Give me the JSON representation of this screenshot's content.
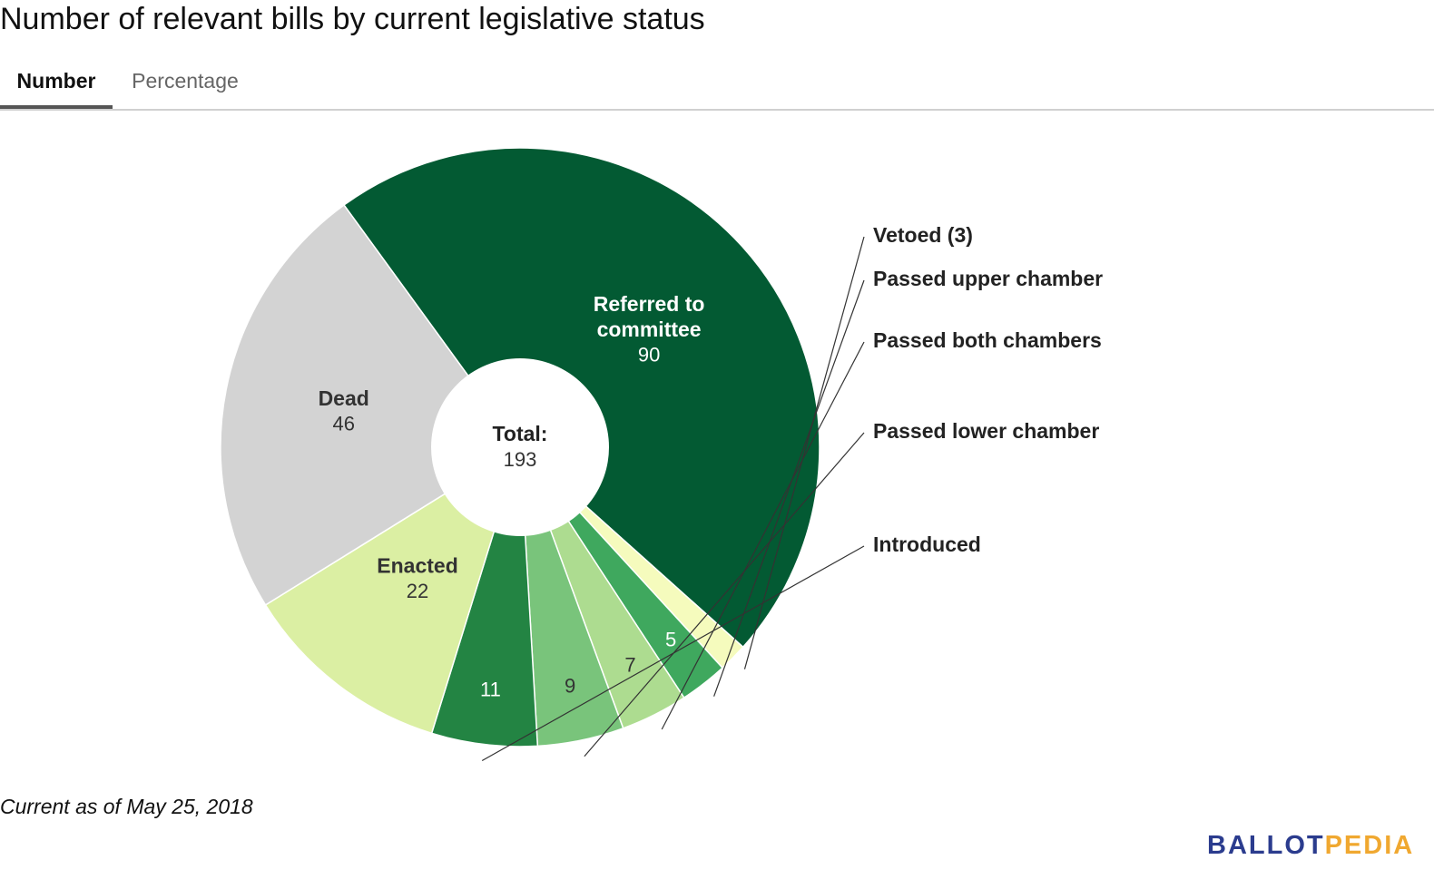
{
  "title": "Number of relevant bills by current legislative status",
  "tabs": [
    {
      "label": "Number",
      "active": true
    },
    {
      "label": "Percentage",
      "active": false
    }
  ],
  "footnote": "Current as of May 25, 2018",
  "brand": {
    "part1": "BALLOT",
    "part2": "PEDIA",
    "color1": "#2b3c8e",
    "color2": "#f0a830"
  },
  "chart_data": {
    "type": "pie",
    "donut": true,
    "center_label": {
      "title": "Total:",
      "value": "193"
    },
    "series": [
      {
        "values": [
          90,
          3,
          5,
          7,
          9,
          11,
          22,
          46
        ],
        "labels": [
          "Referred to committee",
          "Vetoed (3)",
          "Passed upper chamber",
          "Passed both chambers",
          "Passed lower chamber",
          "Introduced",
          "Enacted",
          "Dead"
        ],
        "value_labels": [
          "90",
          "",
          "5",
          "7",
          "9",
          "11",
          "22",
          "46"
        ],
        "colors": [
          "#035a33",
          "#f5fbbd",
          "#3fa85e",
          "#addc90",
          "#79c47b",
          "#238443",
          "#dbefa3",
          "#d3d3d3"
        ]
      }
    ]
  }
}
